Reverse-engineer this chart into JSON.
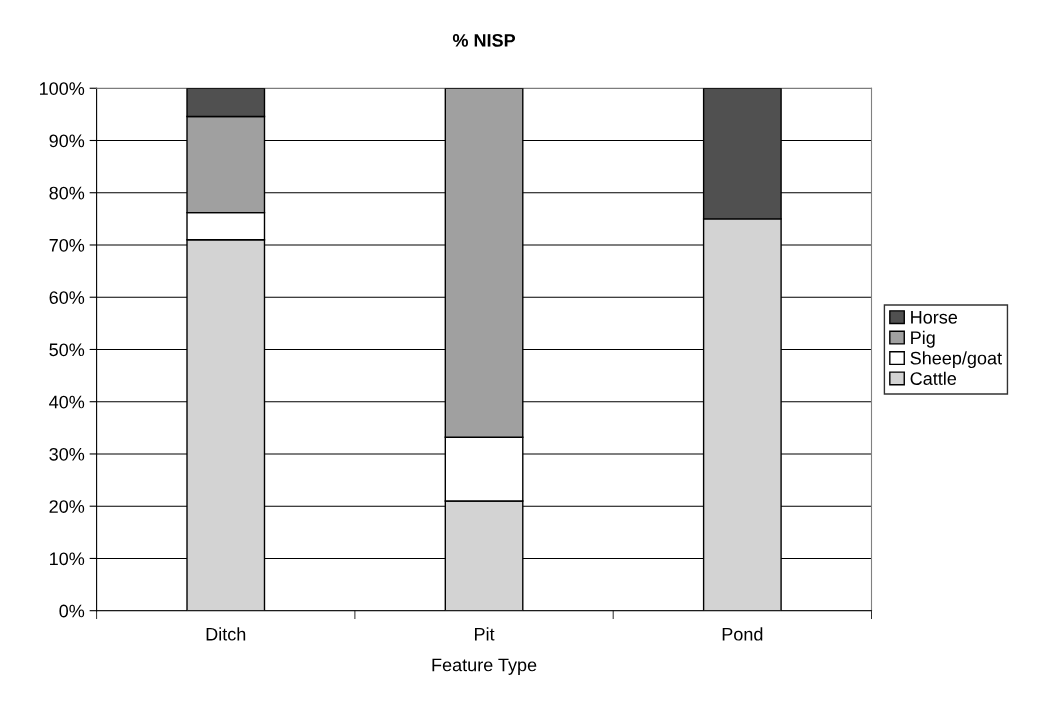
{
  "chart_data": {
    "type": "bar",
    "title": "% NISP",
    "xlabel": "Feature Type",
    "categories": [
      "Ditch",
      "Pit",
      "Pond"
    ],
    "stacked": true,
    "series": [
      {
        "name": "Cattle",
        "color": "#d3d3d3",
        "values": [
          71,
          21,
          75
        ]
      },
      {
        "name": "Sheep/goat",
        "color": "#ffffff",
        "values": [
          5.2,
          12.2,
          0
        ]
      },
      {
        "name": "Pig",
        "color": "#a0a0a0",
        "values": [
          18.4,
          66.8,
          0
        ]
      },
      {
        "name": "Horse",
        "color": "#505050",
        "values": [
          5.4,
          0,
          25
        ]
      }
    ],
    "ylim": [
      0,
      100
    ],
    "yticks": [
      {
        "value": 0,
        "label": "0%"
      },
      {
        "value": 10,
        "label": "10%"
      },
      {
        "value": 20,
        "label": "20%"
      },
      {
        "value": 30,
        "label": "30%"
      },
      {
        "value": 40,
        "label": "40%"
      },
      {
        "value": 50,
        "label": "50%"
      },
      {
        "value": 60,
        "label": "60%"
      },
      {
        "value": 70,
        "label": "70%"
      },
      {
        "value": 80,
        "label": "80%"
      },
      {
        "value": 90,
        "label": "90%"
      },
      {
        "value": 100,
        "label": "100%"
      }
    ],
    "grid": "y",
    "legend": "right"
  }
}
